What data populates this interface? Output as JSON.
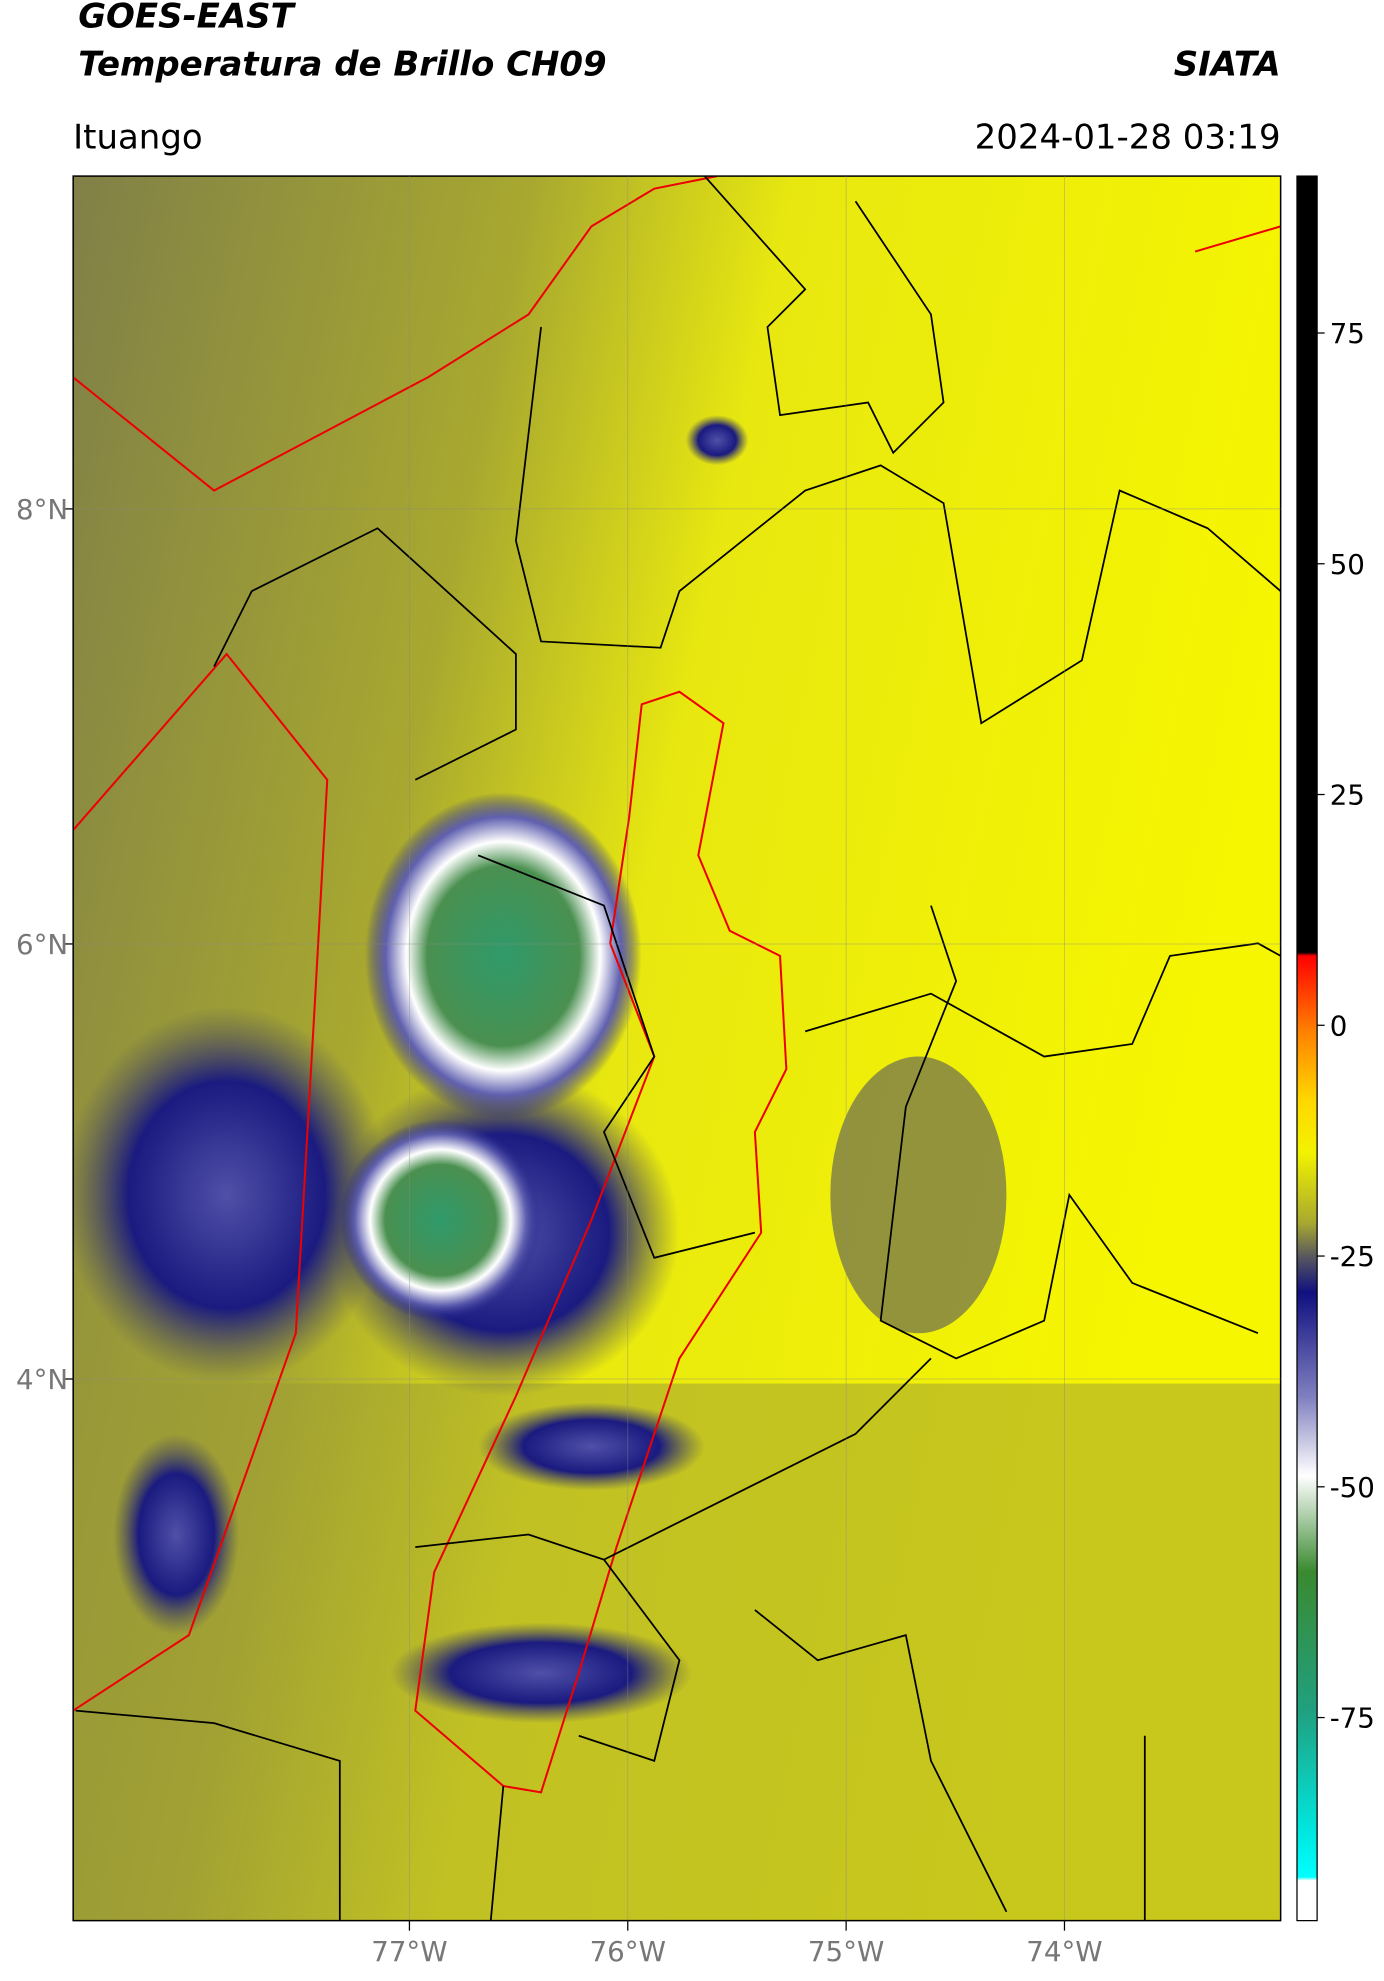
{
  "header": {
    "title": "GOES-EAST",
    "subtitle": "Temperatura de Brillo CH09",
    "source": "SIATA",
    "region": "Ituango",
    "datetime": "2024-01-28 03:19"
  },
  "map": {
    "xlim": [
      -78.54,
      -73.01
    ],
    "ylim": [
      1.51,
      9.53
    ],
    "xticks": [
      {
        "value": -77,
        "label": "77°W"
      },
      {
        "value": -76,
        "label": "76°W"
      },
      {
        "value": -75,
        "label": "75°W"
      },
      {
        "value": -74,
        "label": "74°W"
      }
    ],
    "yticks": [
      {
        "value": 8,
        "label": "8°N"
      },
      {
        "value": 6,
        "label": "6°N"
      },
      {
        "value": 4,
        "label": "4°N"
      }
    ]
  },
  "colorbar": {
    "lim": [
      -97,
      92
    ],
    "ticks": [
      75,
      50,
      25,
      0,
      -25,
      -50,
      -75
    ]
  }
}
